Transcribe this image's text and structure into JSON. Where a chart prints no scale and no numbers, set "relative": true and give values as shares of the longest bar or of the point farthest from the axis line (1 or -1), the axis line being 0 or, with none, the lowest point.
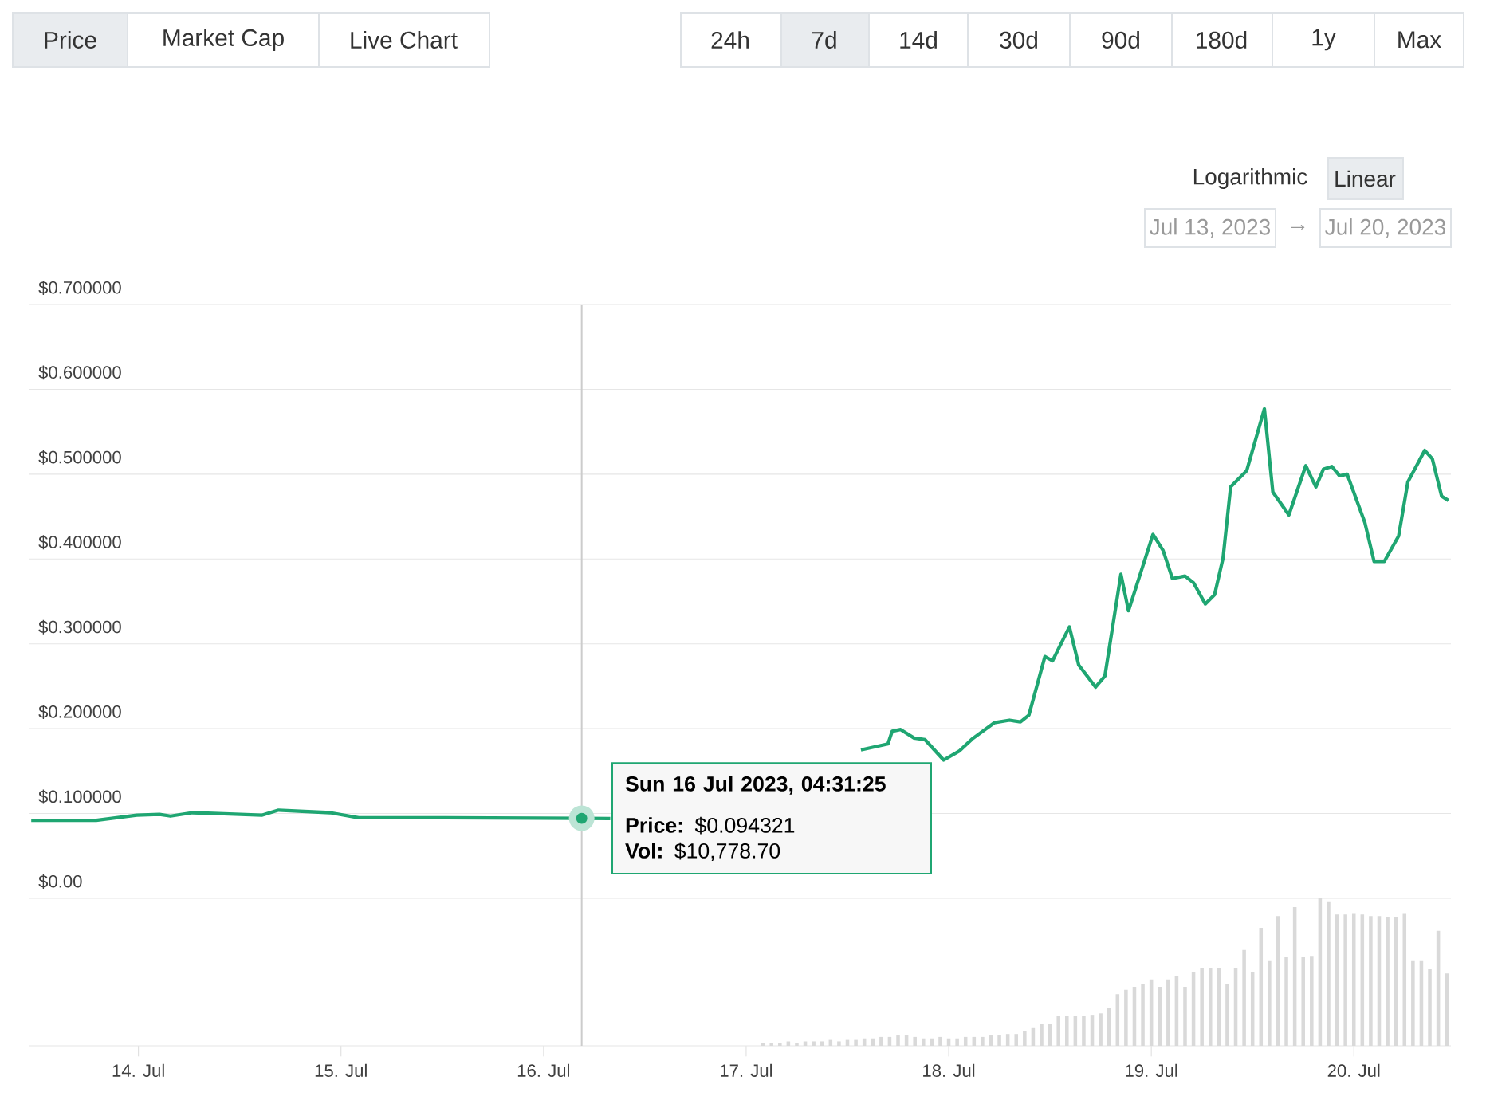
{
  "chart_data": [
    {
      "type": "line",
      "grid": "y",
      "tick_labels": "y",
      "xlim": [
        "2023-07-13T11:00",
        "2023-07-20T11:30"
      ],
      "ylim": [
        0,
        0.7
      ],
      "yticks": [
        {
          "value": 0,
          "label": "$0.00"
        },
        {
          "value": 0.1,
          "label": "$0.100000"
        },
        {
          "value": 0.2,
          "label": "$0.200000"
        },
        {
          "value": 0.3,
          "label": "$0.300000"
        },
        {
          "value": 0.4,
          "label": "$0.400000"
        },
        {
          "value": 0.5,
          "label": "$0.500000"
        },
        {
          "value": 0.6,
          "label": "$0.600000"
        },
        {
          "value": 0.7,
          "label": "$0.700000"
        }
      ],
      "ref_lines": [
        {
          "axis": "x",
          "value": "2023-07-16T04:31",
          "color": "#cccccc"
        }
      ],
      "series": [
        {
          "color": "#1fa672",
          "x": [
            "2023-07-13T11:18",
            "2023-07-13T19:00",
            "2023-07-13T23:48",
            "2023-07-14T02:30",
            "2023-07-14T03:48",
            "2023-07-14T06:24",
            "2023-07-14T14:36",
            "2023-07-14T16:36",
            "2023-07-14T22:42",
            "2023-07-15T02:06",
            "2023-07-15T12:18",
            "2023-07-16T04:31",
            "2023-07-16T07:54",
            "2023-07-16T23:00",
            "2023-07-17T13:36",
            "2023-07-17T16:48",
            "2023-07-17T17:18",
            "2023-07-17T18:18",
            "2023-07-17T19:54",
            "2023-07-17T21:12",
            "2023-07-17T23:24",
            "2023-07-18T01:18",
            "2023-07-18T02:48",
            "2023-07-18T05:24",
            "2023-07-18T07:12",
            "2023-07-18T08:30",
            "2023-07-18T09:30",
            "2023-07-18T11:24",
            "2023-07-18T12:18",
            "2023-07-18T14:18",
            "2023-07-18T15:24",
            "2023-07-18T17:24",
            "2023-07-18T18:30",
            "2023-07-18T20:24",
            "2023-07-18T21:18",
            "2023-07-19T00:12",
            "2023-07-19T01:24",
            "2023-07-19T02:30",
            "2023-07-19T04:00",
            "2023-07-19T05:00",
            "2023-07-19T06:24",
            "2023-07-19T07:30",
            "2023-07-19T08:30",
            "2023-07-19T09:24",
            "2023-07-19T11:18",
            "2023-07-19T13:24",
            "2023-07-19T14:24",
            "2023-07-19T16:18",
            "2023-07-19T18:18",
            "2023-07-19T19:30",
            "2023-07-19T20:24",
            "2023-07-19T21:24",
            "2023-07-19T22:18",
            "2023-07-19T23:12",
            "2023-07-20T01:18",
            "2023-07-20T02:24",
            "2023-07-20T03:36",
            "2023-07-20T05:18",
            "2023-07-20T06:24",
            "2023-07-20T08:24",
            "2023-07-20T09:18",
            "2023-07-20T10:24",
            "2023-07-20T11:12"
          ],
          "values": [
            0.092,
            0.092,
            0.098,
            0.099,
            0.097,
            0.101,
            0.098,
            0.104,
            0.101,
            0.095,
            0.095,
            0.094321,
            0.094,
            null,
            0.175,
            0.182,
            0.197,
            0.199,
            0.189,
            0.187,
            0.163,
            0.174,
            0.188,
            0.207,
            0.21,
            0.208,
            0.216,
            0.285,
            0.28,
            0.32,
            0.275,
            0.249,
            0.262,
            0.382,
            0.339,
            0.429,
            0.41,
            0.377,
            0.38,
            0.372,
            0.347,
            0.358,
            0.401,
            0.485,
            0.504,
            0.577,
            0.479,
            0.452,
            0.51,
            0.485,
            0.506,
            0.509,
            0.498,
            0.5,
            0.443,
            0.397,
            0.397,
            0.427,
            0.491,
            0.528,
            0.518,
            0.474,
            0.469
          ]
        }
      ],
      "annotations": [
        "Price",
        "Market Cap",
        "Live Chart",
        "24h",
        "7d",
        "14d",
        "30d",
        "90d",
        "180d",
        "1y",
        "Max",
        "Logarithmic",
        "Linear",
        "Jul 13, 2023",
        "→",
        "Jul 20, 2023",
        {
          "text": "Sun 16 Jul 2023, 04:31:25",
          "x": "2023-07-16T04:31",
          "y": 0.094321
        },
        "**Price:** $0.094321",
        "**Vol:** $10,778.70"
      ]
    },
    {
      "type": "bar",
      "relative": true,
      "tick_labels": "x",
      "xlim": [
        "2023-07-13T11:00",
        "2023-07-20T11:30"
      ],
      "xticks": [
        {
          "value": "2023-07-14",
          "label": "14. Jul"
        },
        {
          "value": "2023-07-15",
          "label": "15. Jul"
        },
        {
          "value": "2023-07-16",
          "label": "16. Jul"
        },
        {
          "value": "2023-07-17",
          "label": "17. Jul"
        },
        {
          "value": "2023-07-18",
          "label": "18. Jul"
        },
        {
          "value": "2023-07-19",
          "label": "19. Jul"
        },
        {
          "value": "2023-07-20",
          "label": "20. Jul"
        }
      ],
      "ref_lines": [
        {
          "axis": "x",
          "value": "2023-07-16T04:31",
          "color": "#cccccc"
        }
      ],
      "series": [
        {
          "color": "#d9d9d9",
          "x": [
            "2023-07-17T02:00",
            "2023-07-17T03:00",
            "2023-07-17T04:00",
            "2023-07-17T05:00",
            "2023-07-17T06:00",
            "2023-07-17T07:00",
            "2023-07-17T08:00",
            "2023-07-17T09:00",
            "2023-07-17T10:00",
            "2023-07-17T11:00",
            "2023-07-17T12:00",
            "2023-07-17T13:00",
            "2023-07-17T14:00",
            "2023-07-17T15:00",
            "2023-07-17T16:00",
            "2023-07-17T17:00",
            "2023-07-17T18:00",
            "2023-07-17T19:00",
            "2023-07-17T20:00",
            "2023-07-17T21:00",
            "2023-07-17T22:00",
            "2023-07-17T23:00",
            "2023-07-18T00:00",
            "2023-07-18T01:00",
            "2023-07-18T02:00",
            "2023-07-18T03:00",
            "2023-07-18T04:00",
            "2023-07-18T05:00",
            "2023-07-18T06:00",
            "2023-07-18T07:00",
            "2023-07-18T08:00",
            "2023-07-18T09:00",
            "2023-07-18T10:00",
            "2023-07-18T11:00",
            "2023-07-18T12:00",
            "2023-07-18T13:00",
            "2023-07-18T14:00",
            "2023-07-18T15:00",
            "2023-07-18T16:00",
            "2023-07-18T17:00",
            "2023-07-18T18:00",
            "2023-07-18T19:00",
            "2023-07-18T20:00",
            "2023-07-18T21:00",
            "2023-07-18T22:00",
            "2023-07-18T23:00",
            "2023-07-19T00:00",
            "2023-07-19T01:00",
            "2023-07-19T02:00",
            "2023-07-19T03:00",
            "2023-07-19T04:00",
            "2023-07-19T05:00",
            "2023-07-19T06:00",
            "2023-07-19T07:00",
            "2023-07-19T08:00",
            "2023-07-19T09:00",
            "2023-07-19T10:00",
            "2023-07-19T11:00",
            "2023-07-19T12:00",
            "2023-07-19T13:00",
            "2023-07-19T14:00",
            "2023-07-19T15:00",
            "2023-07-19T16:00",
            "2023-07-19T17:00",
            "2023-07-19T18:00",
            "2023-07-19T19:00",
            "2023-07-19T20:00",
            "2023-07-19T21:00",
            "2023-07-19T22:00",
            "2023-07-19T23:00",
            "2023-07-20T00:00",
            "2023-07-20T01:00",
            "2023-07-20T02:00",
            "2023-07-20T03:00",
            "2023-07-20T04:00",
            "2023-07-20T05:00",
            "2023-07-20T06:00",
            "2023-07-20T07:00",
            "2023-07-20T08:00",
            "2023-07-20T09:00",
            "2023-07-20T10:00",
            "2023-07-20T11:00"
          ],
          "values": [
            0.02,
            0.02,
            0.02,
            0.03,
            0.02,
            0.03,
            0.03,
            0.03,
            0.04,
            0.03,
            0.04,
            0.04,
            0.05,
            0.05,
            0.06,
            0.06,
            0.07,
            0.07,
            0.06,
            0.05,
            0.05,
            0.06,
            0.05,
            0.05,
            0.06,
            0.06,
            0.06,
            0.07,
            0.07,
            0.08,
            0.08,
            0.1,
            0.12,
            0.15,
            0.15,
            0.2,
            0.2,
            0.2,
            0.2,
            0.21,
            0.22,
            0.26,
            0.35,
            0.38,
            0.4,
            0.42,
            0.45,
            0.4,
            0.45,
            0.47,
            0.4,
            0.5,
            0.53,
            0.53,
            0.53,
            0.42,
            0.53,
            0.65,
            0.5,
            0.8,
            0.58,
            0.88,
            0.6,
            0.94,
            0.6,
            0.61,
            1.0,
            0.98,
            0.89,
            0.89,
            0.9,
            0.89,
            0.88,
            0.88,
            0.87,
            0.87,
            0.9,
            0.58,
            0.58,
            0.52,
            0.78,
            0.49
          ]
        }
      ]
    }
  ]
}
